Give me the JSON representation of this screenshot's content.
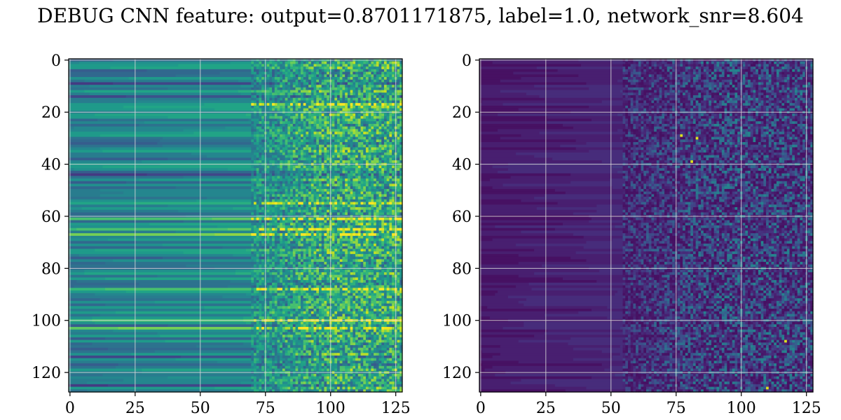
{
  "figure": {
    "title": "DEBUG CNN feature: output=0.8701171875, label=1.0, network_snr=8.604"
  },
  "chart_data": [
    {
      "type": "heatmap",
      "colormap": "viridis",
      "rows": 128,
      "cols": 128,
      "xlim": [
        0,
        127
      ],
      "ylim": [
        127,
        0
      ],
      "y_inverted": true,
      "xticks": [
        0,
        25,
        50,
        75,
        100,
        125
      ],
      "yticks": [
        0,
        20,
        40,
        60,
        80,
        100,
        120
      ],
      "xtick_labels": [
        "0",
        "25",
        "50",
        "75",
        "100",
        "125"
      ],
      "ytick_labels": [
        "0",
        "20",
        "40",
        "60",
        "80",
        "100",
        "120"
      ],
      "grid": true,
      "value_range": [
        0,
        1
      ],
      "description_pattern": "horizontal row bands, smooth for columns 0-70, noisy for columns 70-127",
      "smooth_region_level": 0.42,
      "noisy_region_level": 0.4,
      "noise_start_col": 70,
      "bright_rows": [
        17,
        55,
        61,
        65,
        67,
        88,
        100,
        103
      ],
      "dark_rows": [
        9,
        14,
        32,
        44,
        72,
        92,
        114,
        125
      ],
      "title": ""
    },
    {
      "type": "heatmap",
      "colormap": "viridis",
      "rows": 128,
      "cols": 128,
      "xlim": [
        0,
        127
      ],
      "ylim": [
        127,
        0
      ],
      "y_inverted": true,
      "xticks": [
        0,
        25,
        50,
        75,
        100,
        125
      ],
      "yticks": [
        0,
        20,
        40,
        60,
        80,
        100,
        120
      ],
      "xtick_labels": [
        "0",
        "25",
        "50",
        "75",
        "100",
        "125"
      ],
      "ytick_labels": [
        "0",
        "20",
        "40",
        "60",
        "80",
        "100",
        "120"
      ],
      "grid": true,
      "value_range": [
        0,
        1
      ],
      "description_pattern": "mostly dark purple, faint row bands for columns 0-55, sparse noise for columns 55-127",
      "smooth_region_level": 0.06,
      "noisy_region_level": 0.18,
      "noise_start_col": 55,
      "bright_spots": [
        [
          29,
          77
        ],
        [
          30,
          83
        ],
        [
          39,
          81
        ],
        [
          126,
          110
        ],
        [
          108,
          117
        ]
      ],
      "title": ""
    }
  ]
}
